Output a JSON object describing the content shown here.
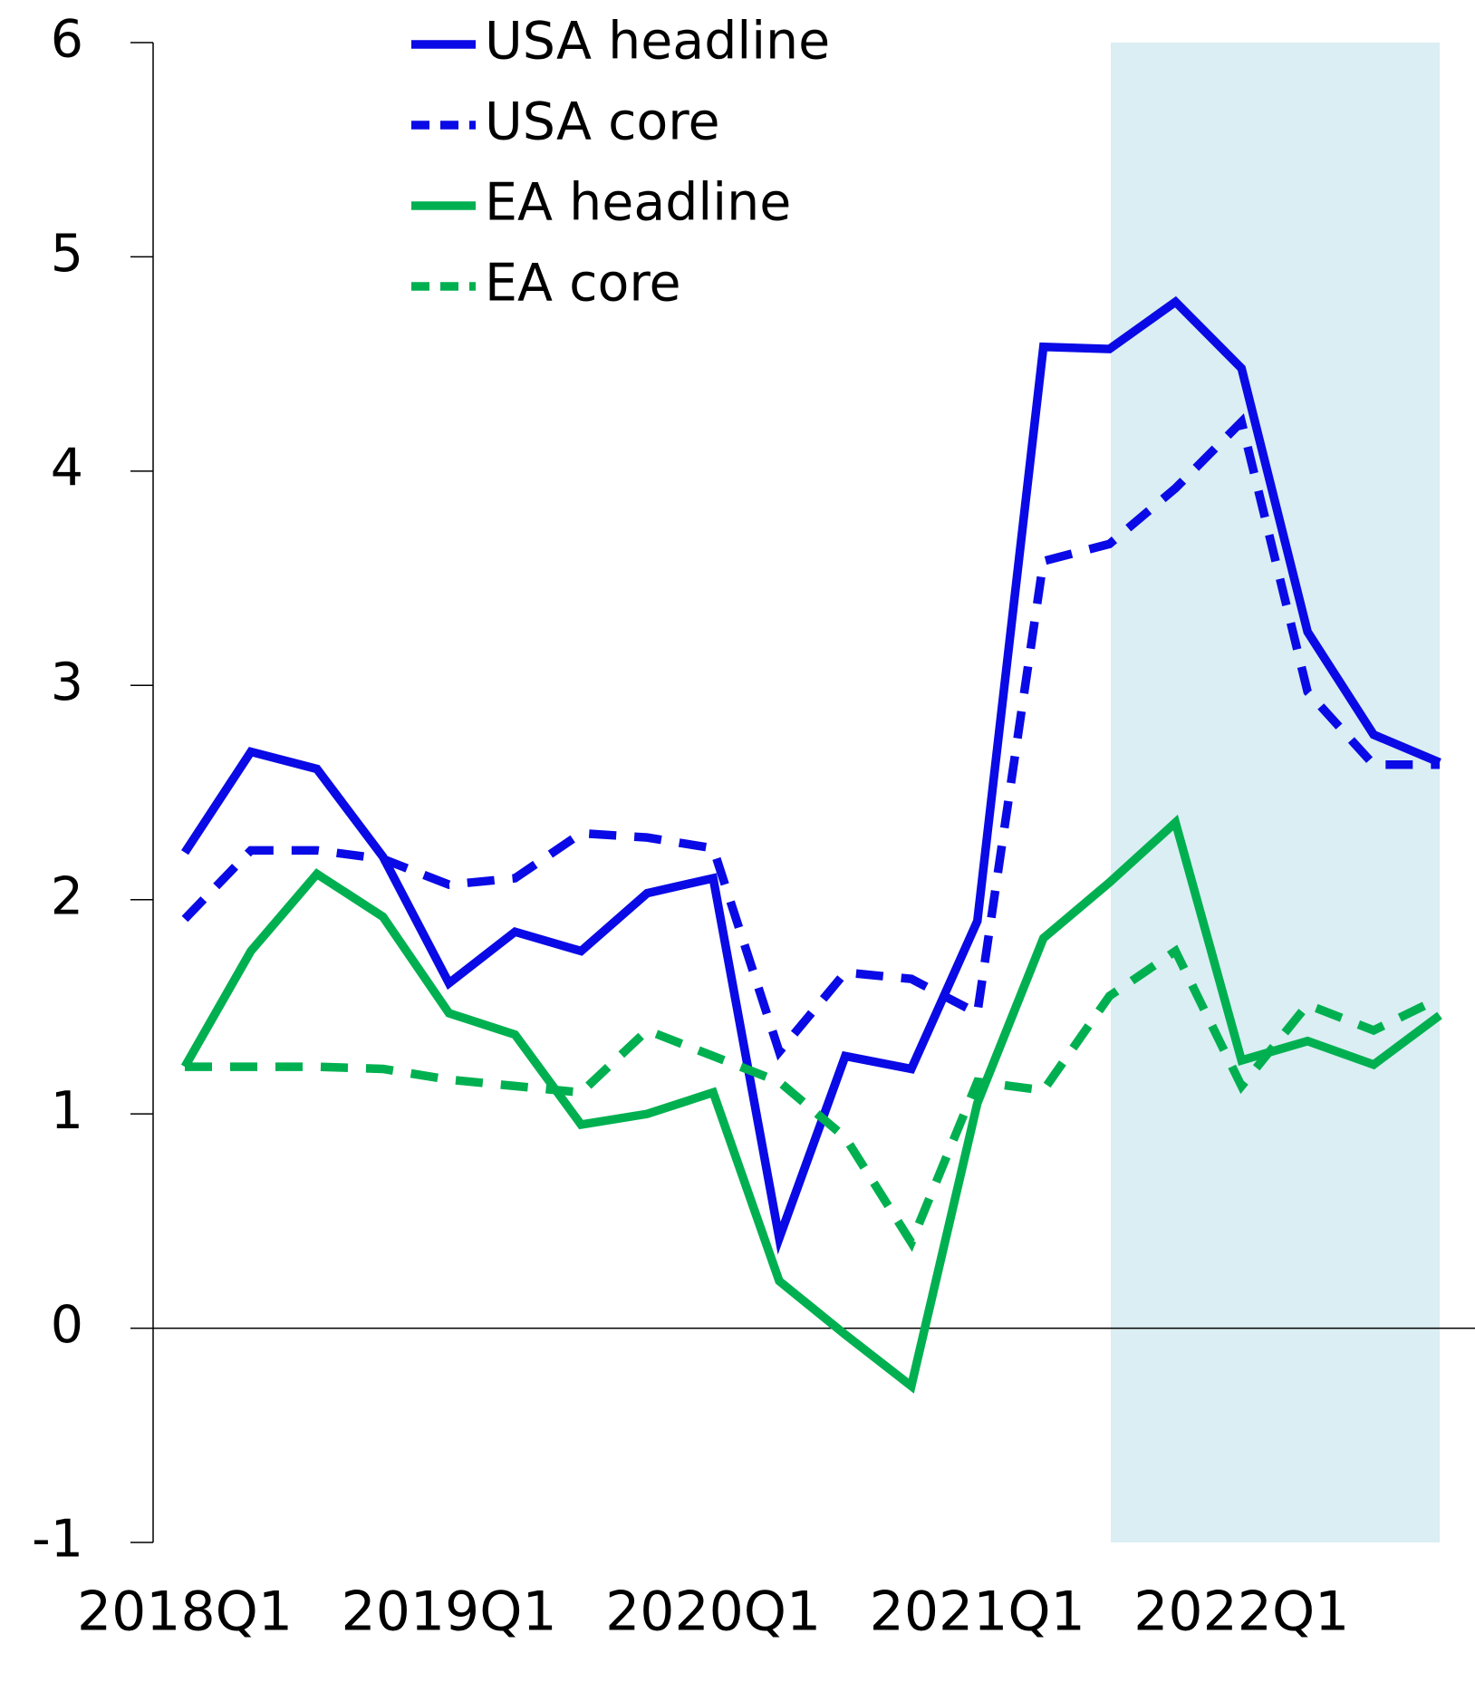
{
  "chart_data": {
    "type": "line",
    "categories": [
      "2018Q1",
      null,
      null,
      null,
      "2019Q1",
      null,
      null,
      null,
      "2020Q1",
      null,
      null,
      null,
      "2021Q1",
      null,
      null,
      null,
      "2022Q1",
      null,
      null,
      null
    ],
    "series": [
      {
        "name": "USA headline",
        "color": "#0a0ae6",
        "linestyle": "solid",
        "values": [
          2.22,
          2.69,
          2.61,
          2.2,
          1.61,
          1.85,
          1.76,
          2.03,
          2.1,
          0.42,
          1.27,
          1.21,
          1.9,
          4.58,
          4.57,
          4.79,
          4.48,
          3.25,
          2.77,
          2.64
        ]
      },
      {
        "name": "USA core",
        "color": "#0a0ae6",
        "linestyle": "dashed",
        "values": [
          1.91,
          2.23,
          2.23,
          2.19,
          2.07,
          2.1,
          2.31,
          2.29,
          2.24,
          1.29,
          1.66,
          1.63,
          1.47,
          3.58,
          3.66,
          3.92,
          4.23,
          2.97,
          2.63,
          2.63
        ]
      },
      {
        "name": "EA headline",
        "color": "#00b050",
        "linestyle": "solid",
        "values": [
          1.22,
          1.76,
          2.12,
          1.92,
          1.47,
          1.37,
          0.95,
          1.0,
          1.1,
          0.22,
          -0.03,
          -0.27,
          1.05,
          1.82,
          2.08,
          2.36,
          1.25,
          1.34,
          1.23,
          1.46
        ]
      },
      {
        "name": "EA core",
        "color": "#00b050",
        "linestyle": "dashed",
        "values": [
          1.22,
          1.22,
          1.22,
          1.21,
          1.16,
          1.13,
          1.1,
          1.39,
          1.27,
          1.15,
          0.89,
          0.4,
          1.15,
          1.11,
          1.55,
          1.76,
          1.13,
          1.51,
          1.39,
          1.54
        ]
      }
    ],
    "ylim": [
      -1,
      6
    ],
    "yticks": [
      -1,
      0,
      1,
      2,
      3,
      4,
      5,
      6
    ]
  }
}
